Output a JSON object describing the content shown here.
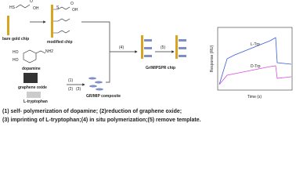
{
  "labels": {
    "bare_chip": "bare gold chip",
    "modified_chip": "modified chip",
    "dopamine": "dopamine",
    "graphene_oxide": "graphene oxide",
    "tryptophan": "L-tryptophan",
    "composite": "GR/MIP composite",
    "spr_chip": "Gr/MIPSPR chip"
  },
  "molecules": {
    "thiol": "HS",
    "carbonyl": "O",
    "hydroxyl": "OH",
    "sulfur": "S",
    "phenol": "HO",
    "amine": "NH2"
  },
  "steps": [
    "(1)",
    "(2)",
    "(3)",
    "(4)",
    "(5)"
  ],
  "inset": {
    "y_label": "Response (RU)",
    "x_label": "Time (s)",
    "series": [
      "L-Trp",
      "D-Trp"
    ]
  },
  "caption": [
    "(1) self- polymerization of dopamine; (2)reduction of graphene oxide;",
    "(3) imprinting of L-tryptophan;(4) in situ polymerization;(5) remove template."
  ]
}
